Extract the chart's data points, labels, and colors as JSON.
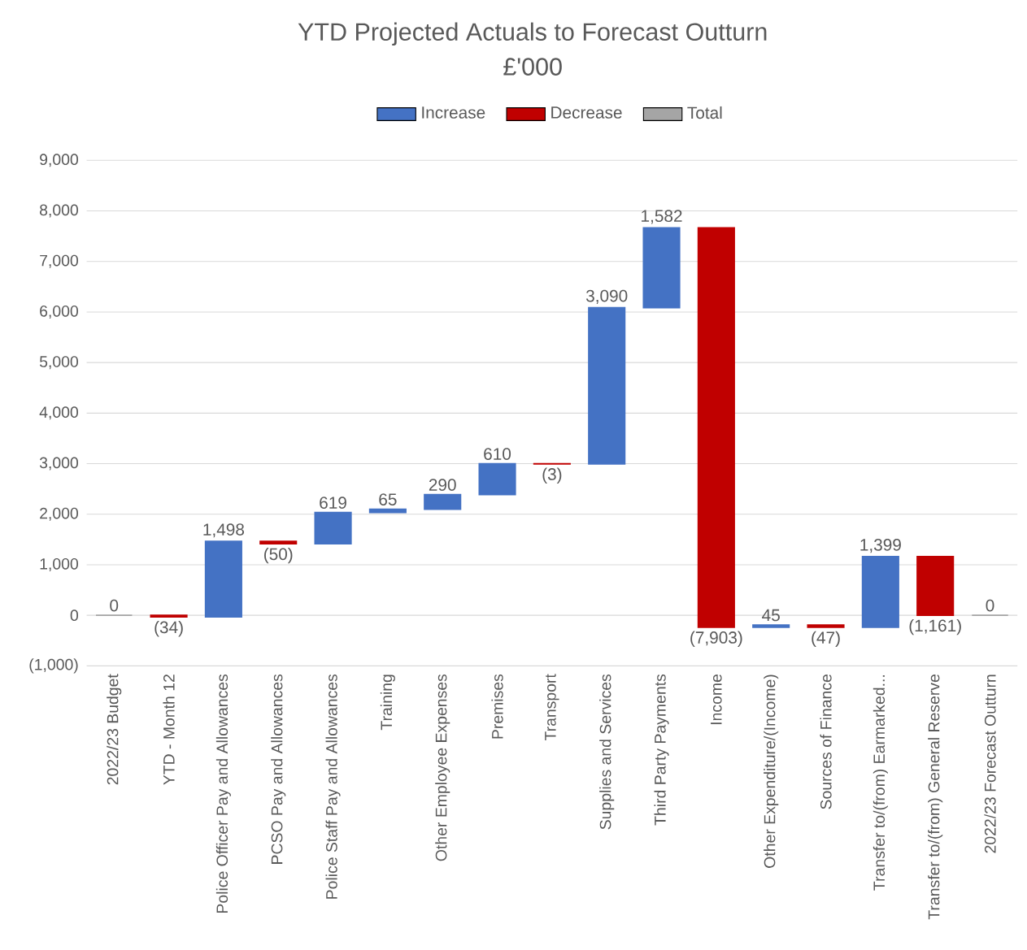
{
  "chart_data": {
    "type": "bar",
    "title": "YTD Projected Actuals to Forecast Outturn",
    "subtitle": "£'000",
    "categories": [
      "2022/23 Budget",
      "YTD - Month 12",
      "Police Officer Pay and Allowances",
      "PCSO Pay and Allowances",
      "Police Staff Pay and Allowances",
      "Training",
      "Other Employee Expenses",
      "Premises",
      "Transport",
      "Supplies and Services",
      "Third Party Payments",
      "Income",
      "Other Expenditure/(Income)",
      "Sources of Finance",
      "Transfer to/(from) Earmarked...",
      "Transfer to/(from) General Reserve",
      "2022/23 Forecast Outturn"
    ],
    "series": [
      {
        "name": "Increase",
        "color": "#4472c4",
        "base": [
          null,
          null,
          -34,
          null,
          1414,
          2033,
          2098,
          2388,
          null,
          2995,
          6085,
          null,
          -236,
          null,
          -238,
          null,
          null
        ],
        "values": [
          null,
          null,
          1498,
          null,
          619,
          65,
          290,
          610,
          null,
          3090,
          1582,
          null,
          45,
          null,
          1399,
          null,
          null
        ],
        "value_labels": [
          null,
          null,
          "1,498",
          null,
          "619",
          "65",
          "290",
          "610",
          null,
          "3,090",
          "1,582",
          null,
          "45",
          null,
          "1,399",
          null,
          null
        ]
      },
      {
        "name": "Decrease",
        "color": "#c00000",
        "base": [
          null,
          0,
          null,
          1464,
          null,
          null,
          null,
          null,
          2998,
          null,
          null,
          7667,
          null,
          -191,
          null,
          1161,
          null
        ],
        "values": [
          null,
          -34,
          null,
          -50,
          null,
          null,
          null,
          null,
          -3,
          null,
          null,
          -7903,
          null,
          -47,
          null,
          -1161,
          null
        ],
        "value_labels": [
          null,
          "(34)",
          null,
          "(50)",
          null,
          null,
          null,
          null,
          "(3)",
          null,
          null,
          "(7,903)",
          null,
          "(47)",
          null,
          "(1,161)",
          null
        ]
      },
      {
        "name": "Total",
        "color": "#a5a5a5",
        "values": [
          0,
          null,
          null,
          null,
          null,
          null,
          null,
          null,
          null,
          null,
          null,
          null,
          null,
          null,
          null,
          null,
          0
        ],
        "value_labels": [
          "0",
          null,
          null,
          null,
          null,
          null,
          null,
          null,
          null,
          null,
          null,
          null,
          null,
          null,
          null,
          null,
          "0"
        ]
      }
    ],
    "ylim": [
      -1000,
      9000
    ],
    "yticks": [
      {
        "value": -1000,
        "label": "(1,000)"
      },
      0,
      {
        "value": 1000,
        "label": "1,000"
      },
      {
        "value": 2000,
        "label": "2,000"
      },
      {
        "value": 3000,
        "label": "3,000"
      },
      {
        "value": 4000,
        "label": "4,000"
      },
      {
        "value": 5000,
        "label": "5,000"
      },
      {
        "value": 6000,
        "label": "6,000"
      },
      {
        "value": 7000,
        "label": "7,000"
      },
      {
        "value": 8000,
        "label": "8,000"
      },
      {
        "value": 9000,
        "label": "9,000"
      }
    ],
    "grid": "y",
    "legend": "top"
  }
}
